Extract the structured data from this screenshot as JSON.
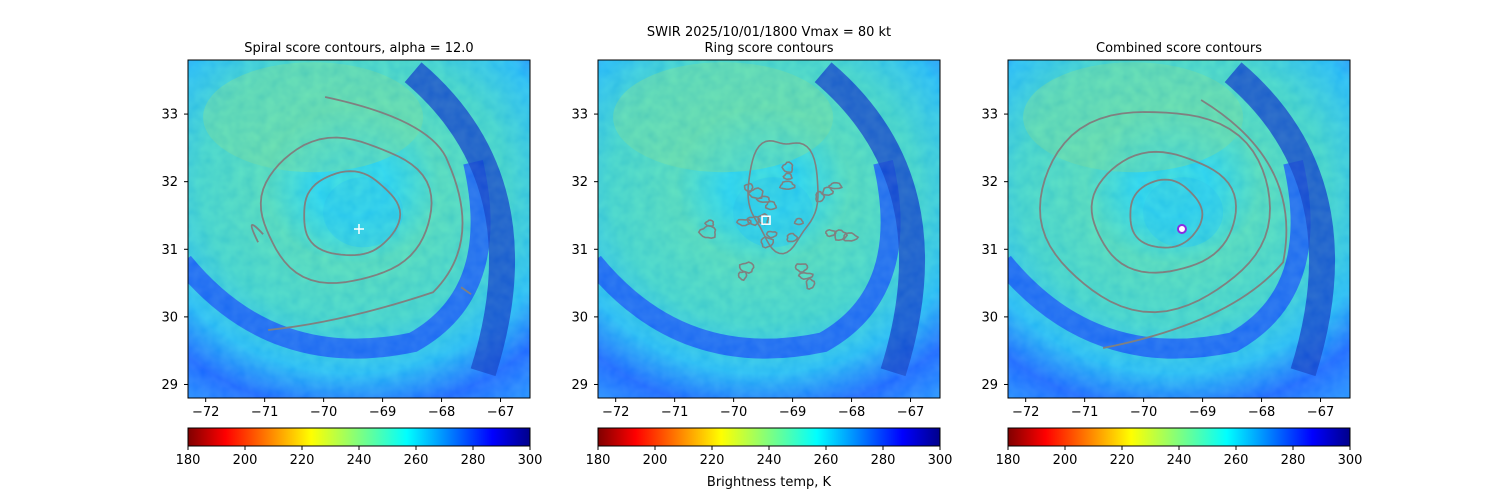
{
  "figure": {
    "suptitle_line1": "SWIR  2025/10/01/1800    Vmax = 80 kt",
    "colorbar_label": "Brightness temp, K"
  },
  "chart_data": [
    {
      "type": "heatmap",
      "title": "Spiral score contours, alpha = 12.0",
      "xlim": [
        -72.3,
        -66.5
      ],
      "ylim": [
        28.8,
        33.8
      ],
      "x_ticks": [
        -72,
        -71,
        -70,
        -69,
        -68,
        -67
      ],
      "y_ticks": [
        29,
        30,
        31,
        32,
        33
      ],
      "center": [
        -69.5,
        31.4
      ],
      "marker": {
        "symbol": "plus",
        "x": -69.4,
        "y": 31.3,
        "color": "#ffffff"
      },
      "contours": "spiral",
      "contour_color": "#808080",
      "colorbar": {
        "min": 180,
        "max": 300,
        "ticks": [
          180,
          200,
          220,
          240,
          260,
          280,
          300
        ],
        "colormap": "jet_r"
      }
    },
    {
      "type": "heatmap",
      "title": "Ring score contours",
      "xlim": [
        -72.3,
        -66.5
      ],
      "ylim": [
        28.8,
        33.8
      ],
      "x_ticks": [
        -72,
        -71,
        -70,
        -69,
        -68,
        -67
      ],
      "y_ticks": [
        29,
        30,
        31,
        32,
        33
      ],
      "center": [
        -69.5,
        31.4
      ],
      "marker": {
        "symbol": "square",
        "x": -69.45,
        "y": 31.43,
        "color": "#ffffff"
      },
      "contours": "ring",
      "contour_color": "#808080",
      "colorbar": {
        "min": 180,
        "max": 300,
        "ticks": [
          180,
          200,
          220,
          240,
          260,
          280,
          300
        ],
        "colormap": "jet_r"
      }
    },
    {
      "type": "heatmap",
      "title": "Combined score contours",
      "xlim": [
        -72.3,
        -66.5
      ],
      "ylim": [
        28.8,
        33.8
      ],
      "x_ticks": [
        -72,
        -71,
        -70,
        -69,
        -68,
        -67
      ],
      "y_ticks": [
        29,
        30,
        31,
        32,
        33
      ],
      "center": [
        -69.5,
        31.4
      ],
      "marker": {
        "symbol": "circle",
        "x": -69.35,
        "y": 31.3,
        "color": "#8a2be2"
      },
      "contours": "combined",
      "contour_color": "#808080",
      "colorbar": {
        "min": 180,
        "max": 300,
        "ticks": [
          180,
          200,
          220,
          240,
          260,
          280,
          300
        ],
        "colormap": "jet_r"
      }
    }
  ]
}
